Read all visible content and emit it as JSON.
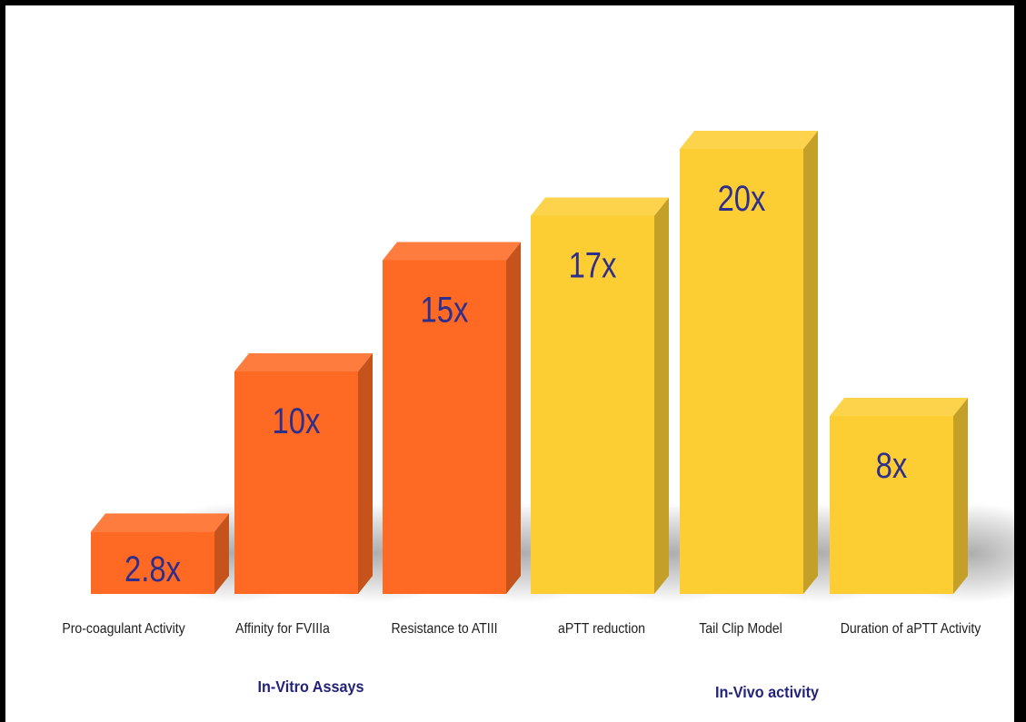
{
  "chart_data": {
    "type": "bar",
    "categories": [
      "Pro-coagulant Activity",
      "Affinity for FVIIIa",
      "Resistance to ATIII",
      "aPTT reduction",
      "Tail Clip Model",
      "Duration of aPTT Activity"
    ],
    "values": [
      2.8,
      10,
      15,
      17,
      20,
      8
    ],
    "labels": [
      "2.8x",
      "10x",
      "15x",
      "17x",
      "20x",
      "8x"
    ],
    "groups": [
      {
        "name": "In-Vitro Assays",
        "categories": [
          0,
          1,
          2
        ],
        "color": "#fe6a24"
      },
      {
        "name": "In-Vivo activity",
        "categories": [
          3,
          4,
          5
        ],
        "color": "#fdcd34"
      }
    ],
    "label_color": "#2e2f8c",
    "group_label_color": "#23237a",
    "title": "",
    "xlabel": "",
    "ylabel": "",
    "grid": false
  }
}
